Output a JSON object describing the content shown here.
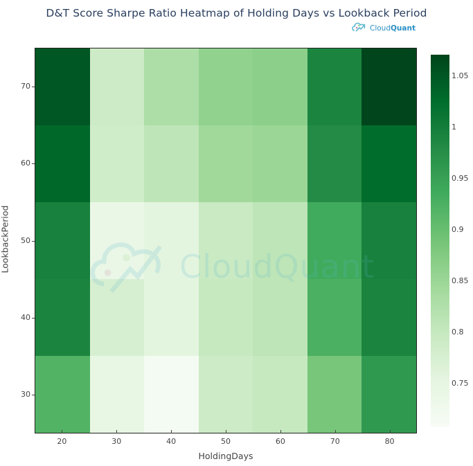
{
  "chart": {
    "title": "D&T Score Sharpe Ratio Heatmap of Holding Days vs Lookback Period",
    "brand": {
      "name_light": "Cloud",
      "name_bold": "Quant",
      "icon": "cloudquant-logo-icon"
    },
    "watermark": "CloudQuant"
  },
  "chart_data": {
    "type": "heatmap",
    "title": "D&T Score Sharpe Ratio Heatmap of Holding Days vs Lookback Period",
    "xlabel": "HoldingDays",
    "ylabel": "LookbackPeriod",
    "x": [
      20,
      30,
      40,
      50,
      60,
      70,
      80
    ],
    "y": [
      30,
      40,
      50,
      60,
      70
    ],
    "z": [
      [
        0.92,
        0.745,
        0.715,
        0.79,
        0.8,
        0.885,
        0.96
      ],
      [
        0.99,
        0.775,
        0.755,
        0.8,
        0.81,
        0.925,
        0.99
      ],
      [
        0.995,
        0.74,
        0.755,
        0.795,
        0.81,
        0.935,
        0.995
      ],
      [
        1.03,
        0.785,
        0.81,
        0.845,
        0.85,
        0.98,
        1.025
      ],
      [
        1.05,
        0.79,
        0.83,
        0.86,
        0.865,
        0.99,
        1.07
      ]
    ],
    "colorscale": "Greens",
    "zmin": 0.708,
    "zmax": 1.071,
    "colorbar_ticks": [
      0.75,
      0.8,
      0.85,
      0.9,
      0.95,
      1,
      1.05
    ],
    "colorbar_tick_labels": [
      "0.75",
      "0.8",
      "0.85",
      "0.9",
      "0.95",
      "1",
      "1.05"
    ],
    "grid": false,
    "legend_position": "colorbar-right"
  }
}
